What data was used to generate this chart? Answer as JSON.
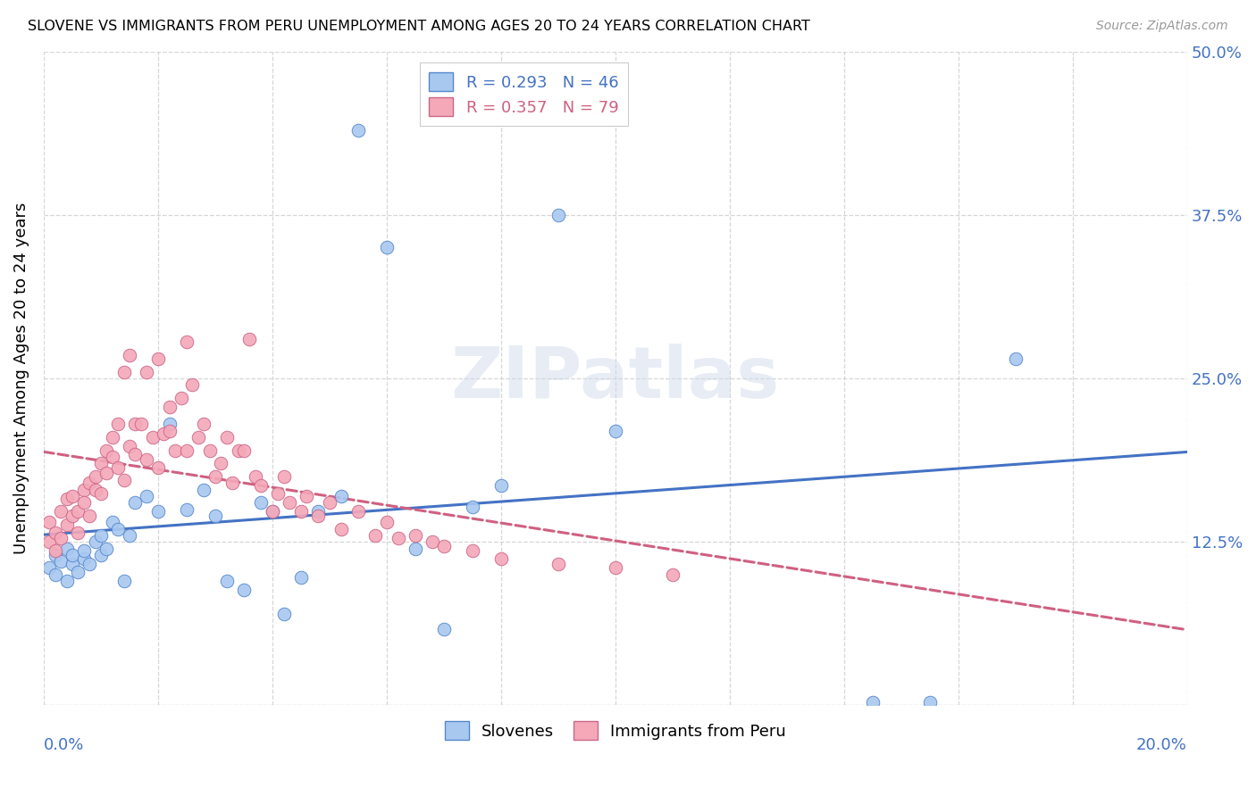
{
  "title": "SLOVENE VS IMMIGRANTS FROM PERU UNEMPLOYMENT AMONG AGES 20 TO 24 YEARS CORRELATION CHART",
  "source": "Source: ZipAtlas.com",
  "ylabel": "Unemployment Among Ages 20 to 24 years",
  "legend_label1": "Slovenes",
  "legend_label2": "Immigrants from Peru",
  "color_slovene_fill": "#a8c8f0",
  "color_peru_fill": "#f4a8b8",
  "color_slovene_edge": "#5588cc",
  "color_peru_edge": "#cc6688",
  "color_slovene_line": "#4472c4",
  "color_peru_line": "#d06080",
  "xlim": [
    0.0,
    0.2
  ],
  "ylim": [
    0.0,
    0.5
  ],
  "slovene_x": [
    0.001,
    0.002,
    0.002,
    0.003,
    0.004,
    0.004,
    0.005,
    0.005,
    0.006,
    0.007,
    0.007,
    0.008,
    0.009,
    0.01,
    0.01,
    0.011,
    0.012,
    0.013,
    0.014,
    0.015,
    0.016,
    0.018,
    0.02,
    0.022,
    0.025,
    0.028,
    0.03,
    0.032,
    0.035,
    0.038,
    0.04,
    0.042,
    0.045,
    0.048,
    0.052,
    0.055,
    0.06,
    0.065,
    0.07,
    0.075,
    0.08,
    0.09,
    0.1,
    0.145,
    0.155,
    0.17
  ],
  "slovene_y": [
    0.105,
    0.115,
    0.1,
    0.11,
    0.095,
    0.12,
    0.108,
    0.115,
    0.102,
    0.112,
    0.118,
    0.108,
    0.125,
    0.115,
    0.13,
    0.12,
    0.14,
    0.135,
    0.095,
    0.13,
    0.155,
    0.16,
    0.148,
    0.215,
    0.15,
    0.165,
    0.145,
    0.095,
    0.088,
    0.155,
    0.148,
    0.07,
    0.098,
    0.148,
    0.16,
    0.44,
    0.35,
    0.12,
    0.058,
    0.152,
    0.168,
    0.375,
    0.21,
    0.002,
    0.002,
    0.265
  ],
  "peru_x": [
    0.001,
    0.001,
    0.002,
    0.002,
    0.003,
    0.003,
    0.004,
    0.004,
    0.005,
    0.005,
    0.006,
    0.006,
    0.007,
    0.007,
    0.008,
    0.008,
    0.009,
    0.009,
    0.01,
    0.01,
    0.011,
    0.011,
    0.012,
    0.012,
    0.013,
    0.013,
    0.014,
    0.014,
    0.015,
    0.015,
    0.016,
    0.016,
    0.017,
    0.018,
    0.018,
    0.019,
    0.02,
    0.02,
    0.021,
    0.022,
    0.022,
    0.023,
    0.024,
    0.025,
    0.025,
    0.026,
    0.027,
    0.028,
    0.029,
    0.03,
    0.031,
    0.032,
    0.033,
    0.034,
    0.035,
    0.036,
    0.037,
    0.038,
    0.04,
    0.041,
    0.042,
    0.043,
    0.045,
    0.046,
    0.048,
    0.05,
    0.052,
    0.055,
    0.058,
    0.06,
    0.062,
    0.065,
    0.068,
    0.07,
    0.075,
    0.08,
    0.09,
    0.1,
    0.11
  ],
  "peru_y": [
    0.125,
    0.14,
    0.118,
    0.132,
    0.148,
    0.128,
    0.158,
    0.138,
    0.145,
    0.16,
    0.132,
    0.148,
    0.165,
    0.155,
    0.17,
    0.145,
    0.175,
    0.165,
    0.185,
    0.162,
    0.178,
    0.195,
    0.205,
    0.19,
    0.215,
    0.182,
    0.255,
    0.172,
    0.268,
    0.198,
    0.215,
    0.192,
    0.215,
    0.255,
    0.188,
    0.205,
    0.265,
    0.182,
    0.208,
    0.228,
    0.21,
    0.195,
    0.235,
    0.278,
    0.195,
    0.245,
    0.205,
    0.215,
    0.195,
    0.175,
    0.185,
    0.205,
    0.17,
    0.195,
    0.195,
    0.28,
    0.175,
    0.168,
    0.148,
    0.162,
    0.175,
    0.155,
    0.148,
    0.16,
    0.145,
    0.155,
    0.135,
    0.148,
    0.13,
    0.14,
    0.128,
    0.13,
    0.125,
    0.122,
    0.118,
    0.112,
    0.108,
    0.105,
    0.1
  ]
}
